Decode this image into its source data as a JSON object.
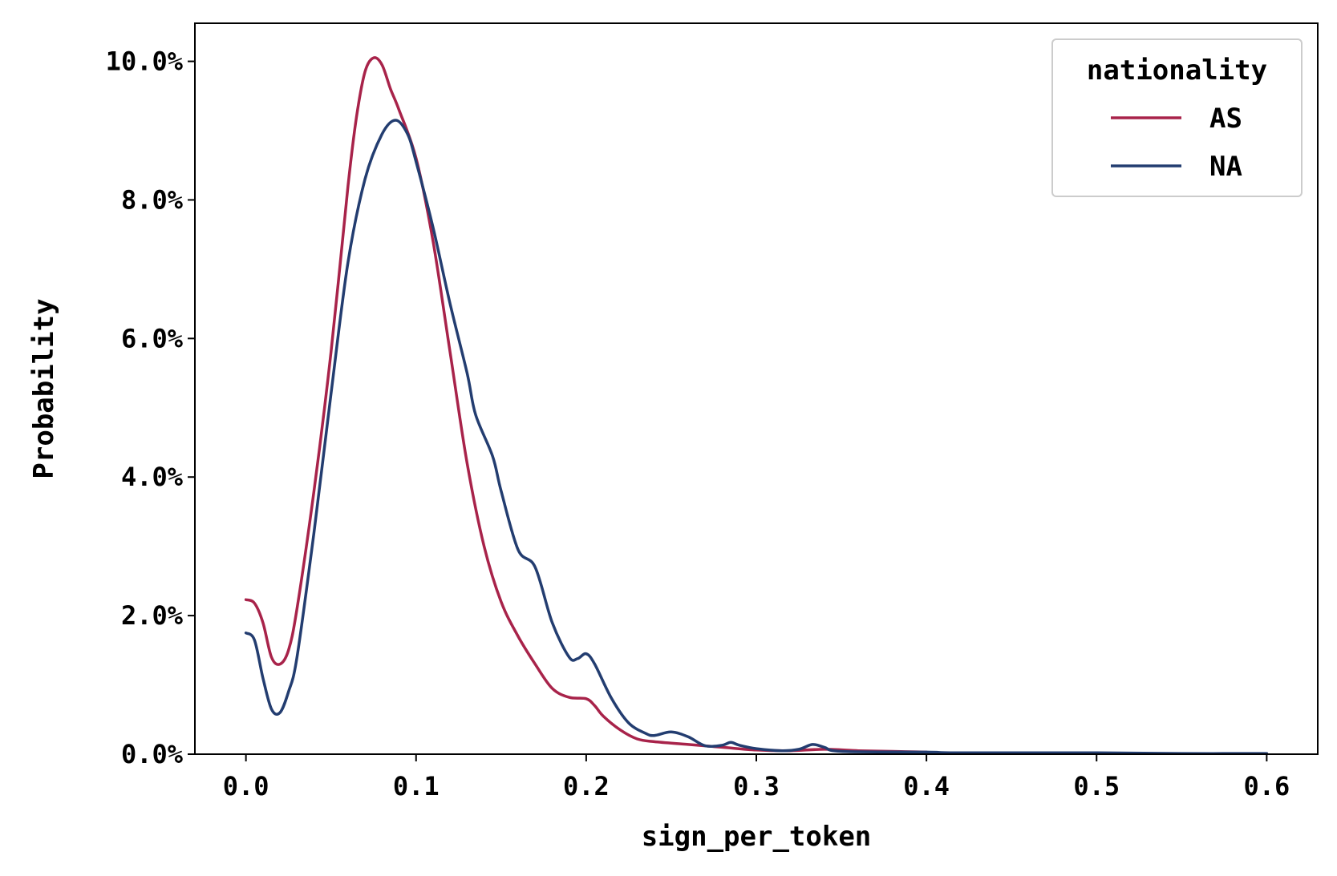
{
  "chart_data": {
    "type": "line",
    "xlabel": "sign_per_token",
    "ylabel": "Probability",
    "xlim": [
      -0.03,
      0.63
    ],
    "ylim": [
      0,
      0.1055
    ],
    "x_ticks": [
      0.0,
      0.1,
      0.2,
      0.3,
      0.4,
      0.5,
      0.6
    ],
    "x_tick_labels": [
      "0.0",
      "0.1",
      "0.2",
      "0.3",
      "0.4",
      "0.5",
      "0.6"
    ],
    "y_ticks": [
      0.0,
      0.02,
      0.04,
      0.06,
      0.08,
      0.1
    ],
    "y_tick_labels": [
      "0.0%",
      "2.0%",
      "4.0%",
      "6.0%",
      "8.0%",
      "10.0%"
    ],
    "grid": false,
    "legend": {
      "title": "nationality",
      "placement": "top-right"
    },
    "series": [
      {
        "name": "AS",
        "color": "#a8234a",
        "points": [
          [
            0.0,
            0.0223
          ],
          [
            0.005,
            0.0218
          ],
          [
            0.01,
            0.019
          ],
          [
            0.015,
            0.014
          ],
          [
            0.02,
            0.013
          ],
          [
            0.025,
            0.015
          ],
          [
            0.03,
            0.021
          ],
          [
            0.04,
            0.038
          ],
          [
            0.05,
            0.058
          ],
          [
            0.06,
            0.082
          ],
          [
            0.065,
            0.092
          ],
          [
            0.07,
            0.0985
          ],
          [
            0.075,
            0.1005
          ],
          [
            0.08,
            0.0995
          ],
          [
            0.085,
            0.096
          ],
          [
            0.09,
            0.093
          ],
          [
            0.1,
            0.086
          ],
          [
            0.11,
            0.074
          ],
          [
            0.12,
            0.058
          ],
          [
            0.13,
            0.042
          ],
          [
            0.14,
            0.03
          ],
          [
            0.15,
            0.022
          ],
          [
            0.16,
            0.017
          ],
          [
            0.17,
            0.013
          ],
          [
            0.18,
            0.0095
          ],
          [
            0.19,
            0.0082
          ],
          [
            0.2,
            0.008
          ],
          [
            0.205,
            0.007
          ],
          [
            0.21,
            0.0055
          ],
          [
            0.22,
            0.0035
          ],
          [
            0.23,
            0.0022
          ],
          [
            0.24,
            0.0018
          ],
          [
            0.26,
            0.0014
          ],
          [
            0.28,
            0.001
          ],
          [
            0.3,
            0.0006
          ],
          [
            0.32,
            0.0005
          ],
          [
            0.34,
            0.0007
          ],
          [
            0.36,
            0.0005
          ],
          [
            0.38,
            0.0004
          ],
          [
            0.4,
            0.0003
          ]
        ]
      },
      {
        "name": "NA",
        "color": "#233d70",
        "points": [
          [
            0.0,
            0.0175
          ],
          [
            0.005,
            0.0165
          ],
          [
            0.01,
            0.011
          ],
          [
            0.015,
            0.0065
          ],
          [
            0.02,
            0.006
          ],
          [
            0.025,
            0.009
          ],
          [
            0.03,
            0.014
          ],
          [
            0.04,
            0.032
          ],
          [
            0.05,
            0.052
          ],
          [
            0.06,
            0.071
          ],
          [
            0.07,
            0.083
          ],
          [
            0.08,
            0.0895
          ],
          [
            0.088,
            0.0915
          ],
          [
            0.095,
            0.0895
          ],
          [
            0.1,
            0.0855
          ],
          [
            0.11,
            0.076
          ],
          [
            0.12,
            0.065
          ],
          [
            0.13,
            0.055
          ],
          [
            0.135,
            0.049
          ],
          [
            0.145,
            0.043
          ],
          [
            0.15,
            0.038
          ],
          [
            0.16,
            0.0295
          ],
          [
            0.17,
            0.027
          ],
          [
            0.18,
            0.019
          ],
          [
            0.19,
            0.014
          ],
          [
            0.195,
            0.0138
          ],
          [
            0.2,
            0.0145
          ],
          [
            0.205,
            0.013
          ],
          [
            0.215,
            0.008
          ],
          [
            0.225,
            0.0045
          ],
          [
            0.235,
            0.003
          ],
          [
            0.24,
            0.0027
          ],
          [
            0.25,
            0.0032
          ],
          [
            0.26,
            0.0025
          ],
          [
            0.27,
            0.0012
          ],
          [
            0.28,
            0.0013
          ],
          [
            0.285,
            0.0017
          ],
          [
            0.29,
            0.0013
          ],
          [
            0.3,
            0.0008
          ],
          [
            0.315,
            0.0005
          ],
          [
            0.325,
            0.0007
          ],
          [
            0.333,
            0.0014
          ],
          [
            0.34,
            0.001
          ],
          [
            0.35,
            0.0004
          ],
          [
            0.4,
            0.0003
          ],
          [
            0.42,
            0.0002
          ],
          [
            0.5,
            0.0002
          ],
          [
            0.55,
            0.0001
          ],
          [
            0.6,
            0.0001
          ]
        ]
      }
    ]
  }
}
